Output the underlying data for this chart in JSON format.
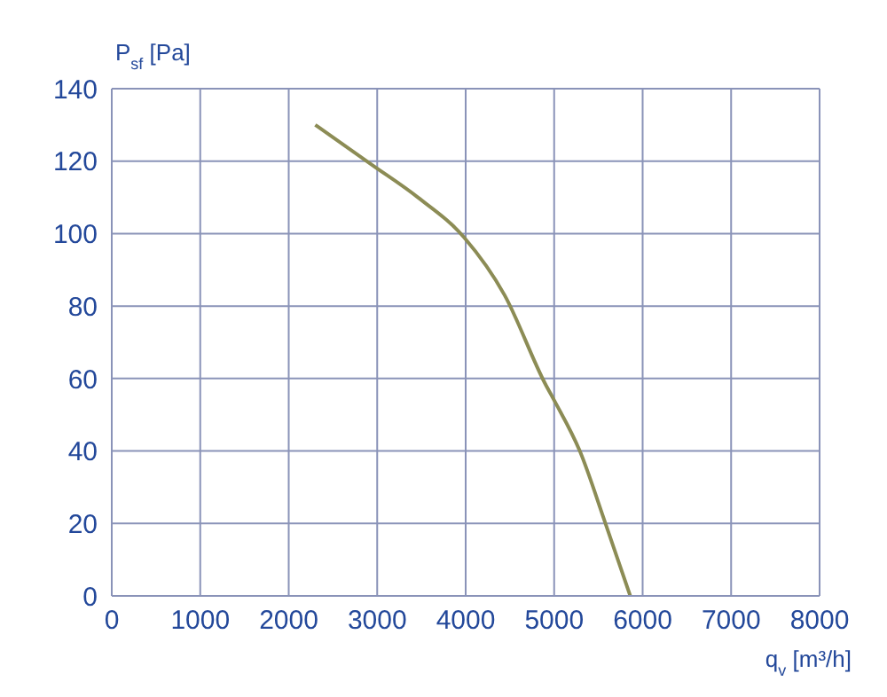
{
  "chart_data": {
    "type": "line",
    "xlabel": "q$_{v}$ [m³/h]",
    "ylabel": "P$_{sf}$ [Pa]",
    "x": [
      2300,
      2940,
      3460,
      3980,
      4440,
      4900,
      5000,
      5290,
      5580,
      5860
    ],
    "series": [
      {
        "color": "#8c8c55",
        "values": [
          130,
          119,
          110,
          99,
          83,
          58.5,
          54,
          40,
          20,
          0
        ]
      }
    ],
    "xlim": [
      0,
      8000
    ],
    "xticks": [
      0,
      1000,
      2000,
      3000,
      4000,
      5000,
      6000,
      7000,
      8000
    ],
    "ylim": [
      0,
      140
    ],
    "yticks": [
      0,
      20,
      40,
      60,
      80,
      100,
      120,
      140
    ],
    "grid": true,
    "marker": "none",
    "line_style": "solid"
  }
}
